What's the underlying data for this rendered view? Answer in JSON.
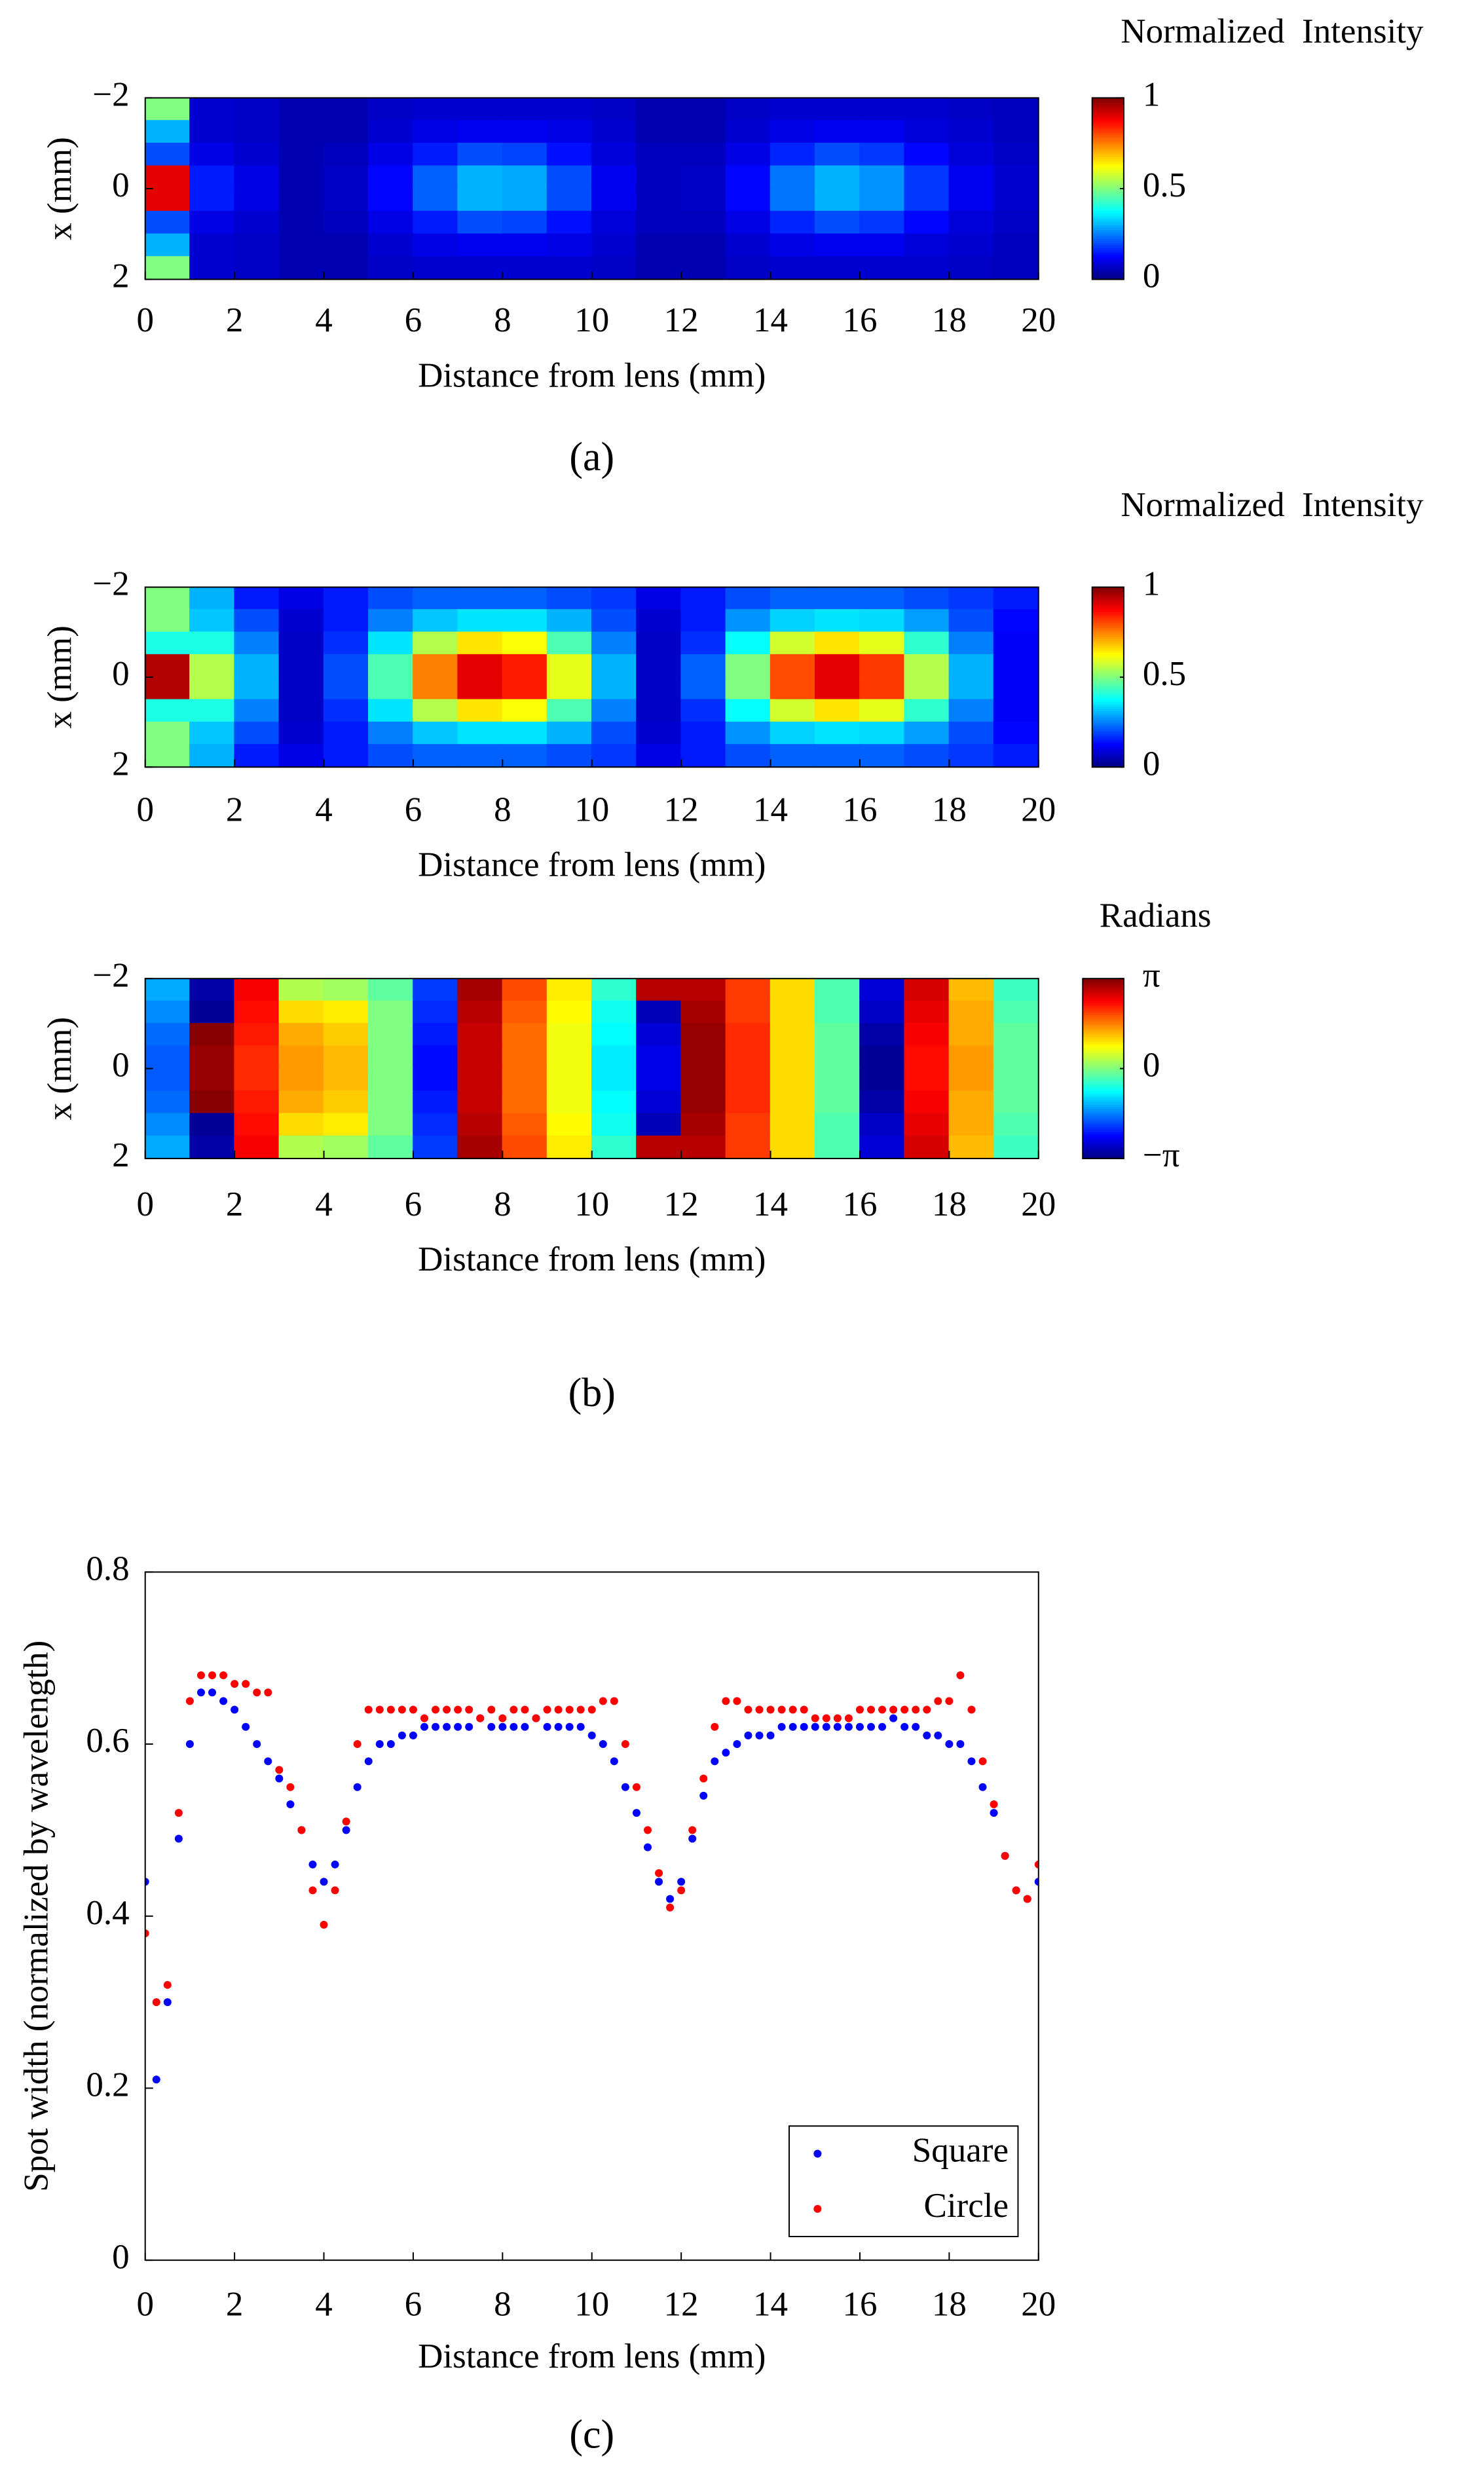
{
  "chart_data": [
    {
      "type": "heatmap",
      "colorbar_title": "Normalized  Intensity",
      "xlabel": "Distance from lens (mm)",
      "ylabel": "x (mm)",
      "caption": "(a)",
      "colormap": "jet",
      "yreverse": true,
      "xlim": [
        0,
        20
      ],
      "xticks": [
        0,
        2,
        4,
        6,
        8,
        10,
        12,
        14,
        16,
        18,
        20
      ],
      "ylim": [
        -2,
        2
      ],
      "yticks": [
        {
          "value": -2,
          "label": "−2"
        },
        0,
        2
      ],
      "clim": [
        0,
        1
      ],
      "cticks": [
        0,
        0.5,
        1
      ],
      "x": [
        0.5,
        1.5,
        2.5,
        3.5,
        4.5,
        5.5,
        6.5,
        7.5,
        8.5,
        9.5,
        10.5,
        11.5,
        12.5,
        13.5,
        14.5,
        15.5,
        16.5,
        17.5,
        18.5,
        19.5
      ],
      "y": [
        -1.75,
        -1.25,
        -0.75,
        -0.25,
        0.25,
        0.75,
        1.25,
        1.75
      ],
      "z": [
        [
          0.5,
          0.08,
          0.07,
          0.05,
          0.05,
          0.07,
          0.08,
          0.08,
          0.08,
          0.08,
          0.07,
          0.05,
          0.05,
          0.07,
          0.08,
          0.08,
          0.08,
          0.08,
          0.07,
          0.06
        ],
        [
          0.3,
          0.08,
          0.07,
          0.05,
          0.05,
          0.08,
          0.1,
          0.11,
          0.11,
          0.1,
          0.08,
          0.05,
          0.05,
          0.08,
          0.1,
          0.11,
          0.11,
          0.09,
          0.08,
          0.06
        ],
        [
          0.2,
          0.1,
          0.08,
          0.05,
          0.06,
          0.1,
          0.15,
          0.2,
          0.19,
          0.14,
          0.09,
          0.06,
          0.06,
          0.1,
          0.16,
          0.2,
          0.18,
          0.13,
          0.09,
          0.07
        ],
        [
          0.9,
          0.15,
          0.1,
          0.05,
          0.07,
          0.13,
          0.22,
          0.3,
          0.29,
          0.2,
          0.11,
          0.06,
          0.07,
          0.13,
          0.24,
          0.3,
          0.27,
          0.18,
          0.11,
          0.08
        ],
        [
          0.9,
          0.15,
          0.1,
          0.05,
          0.07,
          0.13,
          0.22,
          0.3,
          0.29,
          0.2,
          0.11,
          0.06,
          0.07,
          0.13,
          0.24,
          0.3,
          0.27,
          0.18,
          0.11,
          0.08
        ],
        [
          0.2,
          0.1,
          0.08,
          0.05,
          0.06,
          0.1,
          0.15,
          0.2,
          0.19,
          0.14,
          0.09,
          0.06,
          0.06,
          0.1,
          0.16,
          0.2,
          0.18,
          0.13,
          0.09,
          0.07
        ],
        [
          0.3,
          0.08,
          0.07,
          0.05,
          0.05,
          0.08,
          0.1,
          0.11,
          0.11,
          0.1,
          0.08,
          0.05,
          0.05,
          0.08,
          0.1,
          0.11,
          0.11,
          0.09,
          0.08,
          0.06
        ],
        [
          0.5,
          0.08,
          0.07,
          0.05,
          0.05,
          0.07,
          0.08,
          0.08,
          0.08,
          0.08,
          0.07,
          0.05,
          0.05,
          0.07,
          0.08,
          0.08,
          0.08,
          0.08,
          0.07,
          0.06
        ]
      ]
    },
    {
      "type": "heatmap",
      "colorbar_title": "Normalized  Intensity",
      "xlabel": "Distance from lens (mm)",
      "ylabel": "x (mm)",
      "colormap": "jet",
      "yreverse": true,
      "xlim": [
        0,
        20
      ],
      "xticks": [
        0,
        2,
        4,
        6,
        8,
        10,
        12,
        14,
        16,
        18,
        20
      ],
      "ylim": [
        -2,
        2
      ],
      "yticks": [
        {
          "value": -2,
          "label": "−2"
        },
        0,
        2
      ],
      "clim": [
        0,
        1
      ],
      "cticks": [
        0,
        0.5,
        1
      ],
      "x": [
        0.5,
        1.5,
        2.5,
        3.5,
        4.5,
        5.5,
        6.5,
        7.5,
        8.5,
        9.5,
        10.5,
        11.5,
        12.5,
        13.5,
        14.5,
        15.5,
        16.5,
        17.5,
        18.5,
        19.5
      ],
      "y": [
        -1.75,
        -1.25,
        -0.75,
        -0.25,
        0.25,
        0.75,
        1.25,
        1.75
      ],
      "z": [
        [
          0.5,
          0.3,
          0.15,
          0.1,
          0.15,
          0.2,
          0.22,
          0.22,
          0.22,
          0.2,
          0.18,
          0.1,
          0.15,
          0.2,
          0.22,
          0.22,
          0.22,
          0.2,
          0.18,
          0.15
        ],
        [
          0.5,
          0.32,
          0.2,
          0.08,
          0.15,
          0.25,
          0.32,
          0.35,
          0.35,
          0.3,
          0.2,
          0.08,
          0.15,
          0.27,
          0.33,
          0.35,
          0.34,
          0.28,
          0.2,
          0.13
        ],
        [
          0.4,
          0.4,
          0.25,
          0.07,
          0.17,
          0.35,
          0.55,
          0.65,
          0.62,
          0.45,
          0.25,
          0.07,
          0.17,
          0.38,
          0.58,
          0.65,
          0.6,
          0.42,
          0.25,
          0.12
        ],
        [
          0.95,
          0.55,
          0.3,
          0.07,
          0.2,
          0.45,
          0.75,
          0.9,
          0.85,
          0.6,
          0.3,
          0.07,
          0.22,
          0.5,
          0.8,
          0.9,
          0.82,
          0.55,
          0.3,
          0.12
        ],
        [
          0.95,
          0.55,
          0.3,
          0.07,
          0.2,
          0.45,
          0.75,
          0.9,
          0.85,
          0.6,
          0.3,
          0.07,
          0.22,
          0.5,
          0.8,
          0.9,
          0.82,
          0.55,
          0.3,
          0.12
        ],
        [
          0.4,
          0.4,
          0.25,
          0.07,
          0.17,
          0.35,
          0.55,
          0.65,
          0.62,
          0.45,
          0.25,
          0.07,
          0.17,
          0.38,
          0.58,
          0.65,
          0.6,
          0.42,
          0.25,
          0.12
        ],
        [
          0.5,
          0.32,
          0.2,
          0.08,
          0.15,
          0.25,
          0.32,
          0.35,
          0.35,
          0.3,
          0.2,
          0.08,
          0.15,
          0.27,
          0.33,
          0.35,
          0.34,
          0.28,
          0.2,
          0.13
        ],
        [
          0.5,
          0.3,
          0.15,
          0.1,
          0.15,
          0.2,
          0.22,
          0.22,
          0.22,
          0.2,
          0.18,
          0.1,
          0.15,
          0.2,
          0.22,
          0.22,
          0.22,
          0.2,
          0.18,
          0.15
        ]
      ]
    },
    {
      "type": "heatmap",
      "colorbar_title": "Radians",
      "xlabel": "Distance from lens (mm)",
      "ylabel": "x (mm)",
      "caption": "(b)",
      "colormap": "jet",
      "yreverse": true,
      "xlim": [
        0,
        20
      ],
      "xticks": [
        0,
        2,
        4,
        6,
        8,
        10,
        12,
        14,
        16,
        18,
        20
      ],
      "ylim": [
        -2,
        2
      ],
      "yticks": [
        {
          "value": -2,
          "label": "−2"
        },
        0,
        2
      ],
      "clim": [
        -3.14159,
        3.14159
      ],
      "cticks": [
        {
          "value": -3.14159,
          "label": "−π"
        },
        0,
        {
          "value": 3.14159,
          "label": "π"
        }
      ],
      "x": [
        0.5,
        1.5,
        2.5,
        3.5,
        4.5,
        5.5,
        6.5,
        7.5,
        8.5,
        9.5,
        10.5,
        11.5,
        12.5,
        13.5,
        14.5,
        15.5,
        16.5,
        17.5,
        18.5,
        19.5
      ],
      "y": [
        -1.75,
        -1.25,
        -0.75,
        -0.25,
        0.25,
        0.75,
        1.25,
        1.75
      ],
      "z": [
        [
          -1.3,
          -2.9,
          2.4,
          0.3,
          0.2,
          -0.2,
          -2.0,
          2.9,
          1.9,
          0.9,
          -0.5,
          2.8,
          2.8,
          2.0,
          1.0,
          -0.3,
          -2.6,
          2.6,
          1.2,
          -0.4
        ],
        [
          -1.5,
          -3.0,
          2.3,
          1.0,
          0.9,
          0,
          -2.1,
          2.8,
          1.8,
          0.8,
          -0.7,
          -2.8,
          2.9,
          2.0,
          1.0,
          -0.3,
          -2.7,
          2.5,
          1.3,
          -0.3
        ],
        [
          -1.7,
          3.1,
          2.2,
          1.3,
          1.1,
          0,
          -2.2,
          2.7,
          1.7,
          0.7,
          -0.8,
          -2.6,
          3.0,
          2.1,
          1.0,
          -0.2,
          -2.9,
          2.4,
          1.3,
          -0.2
        ],
        [
          -1.8,
          3.0,
          2.1,
          1.4,
          1.2,
          0,
          -2.3,
          2.7,
          1.7,
          0.7,
          -0.9,
          -2.5,
          3.0,
          2.1,
          1.0,
          -0.2,
          -3.0,
          2.3,
          1.4,
          -0.2
        ],
        [
          -1.8,
          3.0,
          2.1,
          1.4,
          1.2,
          0,
          -2.3,
          2.7,
          1.7,
          0.7,
          -0.9,
          -2.5,
          3.0,
          2.1,
          1.0,
          -0.2,
          -3.0,
          2.3,
          1.4,
          -0.2
        ],
        [
          -1.7,
          3.1,
          2.2,
          1.3,
          1.1,
          0,
          -2.2,
          2.7,
          1.7,
          0.7,
          -0.8,
          -2.6,
          3.0,
          2.1,
          1.0,
          -0.2,
          -2.9,
          2.4,
          1.3,
          -0.2
        ],
        [
          -1.5,
          -3.0,
          2.3,
          1.0,
          0.9,
          0,
          -2.1,
          2.8,
          1.8,
          0.8,
          -0.7,
          -2.8,
          2.9,
          2.0,
          1.0,
          -0.3,
          -2.7,
          2.5,
          1.3,
          -0.3
        ],
        [
          -1.3,
          -2.9,
          2.4,
          0.3,
          0.2,
          -0.2,
          -2.0,
          2.9,
          1.9,
          0.9,
          -0.5,
          2.8,
          2.8,
          2.0,
          1.0,
          -0.3,
          -2.6,
          2.6,
          1.2,
          -0.4
        ]
      ]
    },
    {
      "type": "scatter",
      "xlabel": "Distance from lens (mm)",
      "ylabel": "Spot width (normalized by wavelength)",
      "caption": "(c)",
      "xlim": [
        0,
        20
      ],
      "xticks": [
        0,
        2,
        4,
        6,
        8,
        10,
        12,
        14,
        16,
        18,
        20
      ],
      "ylim": [
        0,
        0.8
      ],
      "yticks": [
        0,
        0.2,
        0.4,
        0.6,
        0.8
      ],
      "legend": "lower right",
      "x": [
        0,
        0.25,
        0.5,
        0.75,
        1,
        1.25,
        1.5,
        1.75,
        2,
        2.25,
        2.5,
        2.75,
        3,
        3.25,
        3.5,
        3.75,
        4,
        4.25,
        4.5,
        4.75,
        5,
        5.25,
        5.5,
        5.75,
        6,
        6.25,
        6.5,
        6.75,
        7,
        7.25,
        7.5,
        7.75,
        8,
        8.25,
        8.5,
        8.75,
        9,
        9.25,
        9.5,
        9.75,
        10,
        10.25,
        10.5,
        10.75,
        11,
        11.25,
        11.5,
        11.75,
        12,
        12.25,
        12.5,
        12.75,
        13,
        13.25,
        13.5,
        13.75,
        14,
        14.25,
        14.5,
        14.75,
        15,
        15.25,
        15.5,
        15.75,
        16,
        16.25,
        16.5,
        16.75,
        17,
        17.25,
        17.5,
        17.75,
        18,
        18.25,
        18.5,
        18.75,
        19,
        19.25,
        19.5,
        19.75,
        20
      ],
      "series": [
        {
          "name": "Square",
          "color": "#0000ff",
          "values": [
            0.44,
            0.21,
            0.3,
            0.49,
            0.6,
            0.66,
            0.66,
            0.65,
            0.64,
            0.62,
            0.6,
            0.58,
            0.56,
            0.53,
            0.5,
            0.46,
            0.44,
            0.46,
            0.5,
            0.55,
            0.58,
            0.6,
            0.6,
            0.61,
            0.61,
            0.62,
            0.62,
            0.62,
            0.62,
            0.62,
            0.63,
            0.62,
            0.62,
            0.62,
            0.62,
            0.63,
            0.62,
            0.62,
            0.62,
            0.62,
            0.61,
            0.6,
            0.58,
            0.55,
            0.52,
            0.48,
            0.44,
            0.42,
            0.44,
            0.49,
            0.54,
            0.58,
            0.59,
            0.6,
            0.61,
            0.61,
            0.61,
            0.62,
            0.62,
            0.62,
            0.62,
            0.62,
            0.62,
            0.62,
            0.62,
            0.62,
            0.62,
            0.63,
            0.62,
            0.62,
            0.61,
            0.61,
            0.6,
            0.6,
            0.58,
            0.55,
            0.52,
            0.47,
            0.43,
            0.42,
            0.44
          ]
        },
        {
          "name": "Circle",
          "color": "#ff0000",
          "values": [
            0.38,
            0.3,
            0.32,
            0.52,
            0.65,
            0.68,
            0.68,
            0.68,
            0.67,
            0.67,
            0.66,
            0.66,
            0.57,
            0.55,
            0.5,
            0.43,
            0.39,
            0.43,
            0.51,
            0.6,
            0.64,
            0.64,
            0.64,
            0.64,
            0.64,
            0.63,
            0.64,
            0.64,
            0.64,
            0.64,
            0.63,
            0.64,
            0.63,
            0.64,
            0.64,
            0.63,
            0.64,
            0.64,
            0.64,
            0.64,
            0.64,
            0.65,
            0.65,
            0.6,
            0.55,
            0.5,
            0.45,
            0.41,
            0.43,
            0.5,
            0.56,
            0.62,
            0.65,
            0.65,
            0.64,
            0.64,
            0.64,
            0.64,
            0.64,
            0.64,
            0.63,
            0.63,
            0.63,
            0.63,
            0.64,
            0.64,
            0.64,
            0.64,
            0.64,
            0.64,
            0.64,
            0.65,
            0.65,
            0.68,
            0.64,
            0.58,
            0.53,
            0.47,
            0.43,
            0.42,
            0.46
          ]
        }
      ]
    }
  ]
}
